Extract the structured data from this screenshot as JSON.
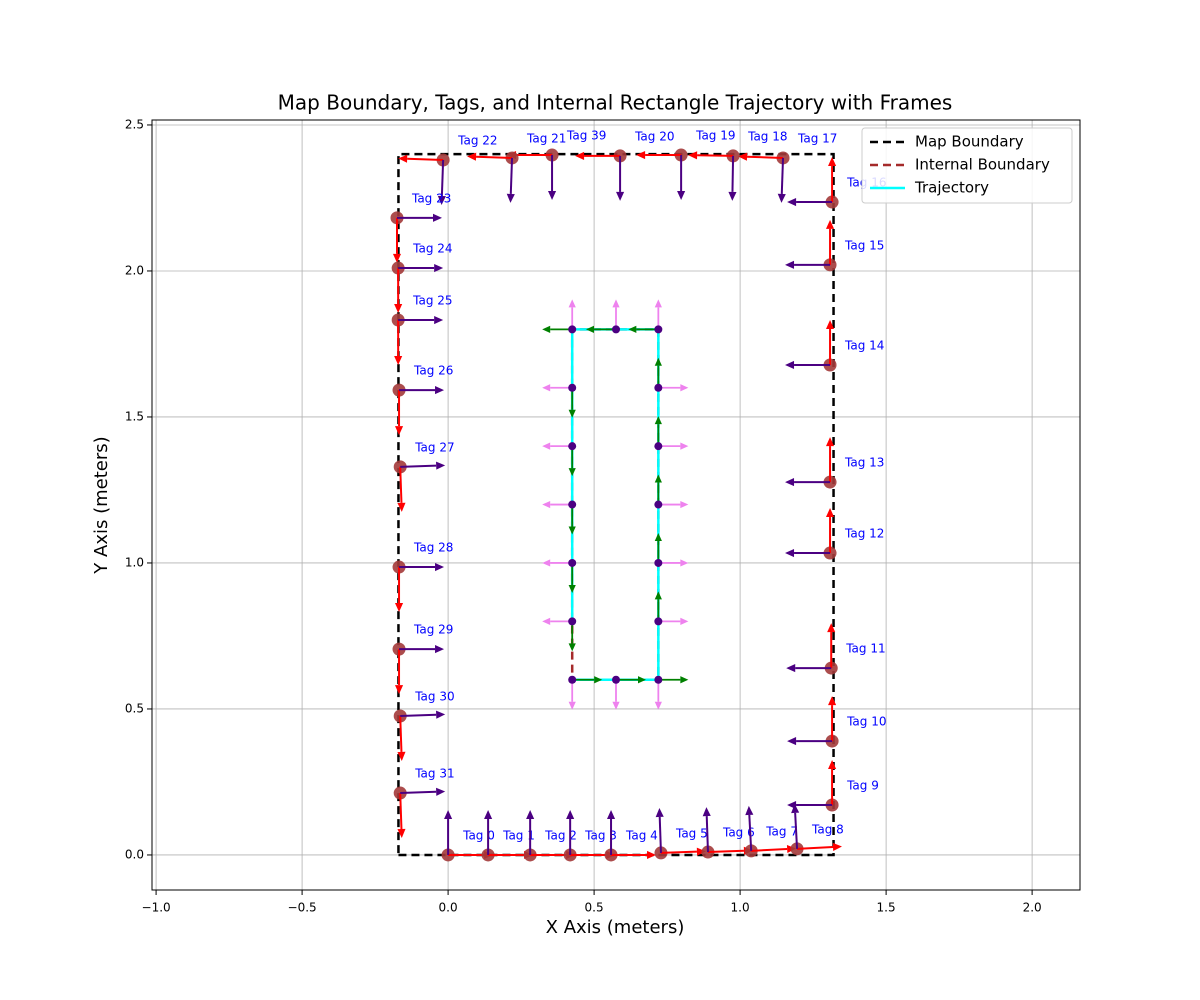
{
  "chart_data": {
    "type": "scatter",
    "title": "Map Boundary, Tags, and Internal Rectangle Trajectory with Frames",
    "x_label": "X Axis (meters)",
    "y_label": "Y Axis (meters)",
    "xlim": [
      -1.014,
      2.164
    ],
    "ylim": [
      -0.12,
      2.517
    ],
    "xticks": [
      {
        "value": -1.0,
        "label": "−1.0"
      },
      {
        "value": -0.5,
        "label": "−0.5"
      },
      {
        "value": 0.0,
        "label": "0.0"
      },
      {
        "value": 0.5,
        "label": "0.5"
      },
      {
        "value": 1.0,
        "label": "1.0"
      },
      {
        "value": 1.5,
        "label": "1.5"
      },
      {
        "value": 2.0,
        "label": "2.0"
      }
    ],
    "yticks": [
      {
        "value": 0.0,
        "label": "0.0"
      },
      {
        "value": 0.5,
        "label": "0.5"
      },
      {
        "value": 1.0,
        "label": "1.0"
      },
      {
        "value": 1.5,
        "label": "1.5"
      },
      {
        "value": 2.0,
        "label": "2.0"
      },
      {
        "value": 2.5,
        "label": "2.5"
      }
    ],
    "grid": true,
    "legend_position": "upper right",
    "series": [
      {
        "name": "Map Boundary",
        "color": "#000000",
        "dashed": true,
        "x": [
          -0.17,
          1.32,
          1.32,
          -0.17,
          -0.17
        ],
        "y": [
          0,
          0,
          2.4,
          2.4,
          0
        ]
      },
      {
        "name": "Internal Boundary",
        "color": "#a52a2a",
        "dashed": true,
        "x": [
          0.425,
          0.72,
          0.72,
          0.425,
          0.425
        ],
        "y": [
          0.6,
          0.6,
          1.8,
          1.8,
          0.6
        ]
      },
      {
        "name": "Trajectory",
        "color": "#00ffff",
        "dashed": false,
        "x": [
          0.425,
          0.72,
          0.72,
          0.425,
          0.425
        ],
        "y": [
          0.6,
          0.6,
          1.8,
          1.8,
          0.8
        ]
      }
    ],
    "tag_colors": {
      "point": "#a33a3a",
      "x_axis": "#ff0000",
      "y_axis": "#4b0082",
      "label": "#0000ff"
    },
    "tags": [
      {
        "label": "Tag 0",
        "x": 0.0,
        "y": 0.0,
        "heading": 0
      },
      {
        "label": "Tag 1",
        "x": 0.137,
        "y": 0.0,
        "heading": 0
      },
      {
        "label": "Tag 2",
        "x": 0.281,
        "y": 0.0,
        "heading": 0
      },
      {
        "label": "Tag 3",
        "x": 0.418,
        "y": 0.0,
        "heading": 0
      },
      {
        "label": "Tag 4",
        "x": 0.558,
        "y": 0.0,
        "heading": 0
      },
      {
        "label": "Tag 5",
        "x": 0.729,
        "y": 0.007,
        "heading": 2
      },
      {
        "label": "Tag 6",
        "x": 0.89,
        "y": 0.01,
        "heading": 2
      },
      {
        "label": "Tag 7",
        "x": 1.038,
        "y": 0.014,
        "heading": 3
      },
      {
        "label": "Tag 8",
        "x": 1.195,
        "y": 0.021,
        "heading": 3
      },
      {
        "label": "Tag 9",
        "x": 1.315,
        "y": 0.171,
        "heading": 90
      },
      {
        "label": "Tag 10",
        "x": 1.315,
        "y": 0.39,
        "heading": 90
      },
      {
        "label": "Tag 11",
        "x": 1.312,
        "y": 0.64,
        "heading": 90
      },
      {
        "label": "Tag 12",
        "x": 1.308,
        "y": 1.034,
        "heading": 90
      },
      {
        "label": "Tag 13",
        "x": 1.308,
        "y": 1.277,
        "heading": 90
      },
      {
        "label": "Tag 14",
        "x": 1.308,
        "y": 1.678,
        "heading": 90
      },
      {
        "label": "Tag 15",
        "x": 1.308,
        "y": 2.021,
        "heading": 90
      },
      {
        "label": "Tag 16",
        "x": 1.315,
        "y": 2.236,
        "heading": 90
      },
      {
        "label": "Tag 17",
        "x": 1.147,
        "y": 2.387,
        "heading": 178
      },
      {
        "label": "Tag 18",
        "x": 0.976,
        "y": 2.394,
        "heading": 179
      },
      {
        "label": "Tag 19",
        "x": 0.798,
        "y": 2.397,
        "heading": 180
      },
      {
        "label": "Tag 20",
        "x": 0.589,
        "y": 2.394,
        "heading": 180
      },
      {
        "label": "Tag 39",
        "x": 0.356,
        "y": 2.397,
        "heading": 180
      },
      {
        "label": "Tag 21",
        "x": 0.219,
        "y": 2.387,
        "heading": 178
      },
      {
        "label": "Tag 22",
        "x": -0.017,
        "y": 2.38,
        "heading": 178
      },
      {
        "label": "Tag 23",
        "x": -0.175,
        "y": 2.182,
        "heading": 270
      },
      {
        "label": "Tag 24",
        "x": -0.171,
        "y": 2.01,
        "heading": 270
      },
      {
        "label": "Tag 25",
        "x": -0.171,
        "y": 1.832,
        "heading": 270
      },
      {
        "label": "Tag 26",
        "x": -0.168,
        "y": 1.592,
        "heading": 270
      },
      {
        "label": "Tag 27",
        "x": -0.164,
        "y": 1.329,
        "heading": 272
      },
      {
        "label": "Tag 28",
        "x": -0.168,
        "y": 0.986,
        "heading": 270
      },
      {
        "label": "Tag 29",
        "x": -0.168,
        "y": 0.705,
        "heading": 270
      },
      {
        "label": "Tag 30",
        "x": -0.164,
        "y": 0.476,
        "heading": 272
      },
      {
        "label": "Tag 31",
        "x": -0.164,
        "y": 0.212,
        "heading": 272
      }
    ],
    "frame_colors": {
      "point": "#4b0082",
      "heading": "#008000",
      "normal": "#ee82ee"
    },
    "frames": [
      {
        "x": 0.425,
        "y": 0.6,
        "heading": 0
      },
      {
        "x": 0.575,
        "y": 0.6,
        "heading": 0
      },
      {
        "x": 0.72,
        "y": 0.6,
        "heading": 0
      },
      {
        "x": 0.72,
        "y": 0.8,
        "heading": 90
      },
      {
        "x": 0.72,
        "y": 1.0,
        "heading": 90
      },
      {
        "x": 0.72,
        "y": 1.2,
        "heading": 90
      },
      {
        "x": 0.72,
        "y": 1.4,
        "heading": 90
      },
      {
        "x": 0.72,
        "y": 1.6,
        "heading": 90
      },
      {
        "x": 0.72,
        "y": 1.8,
        "heading": 180
      },
      {
        "x": 0.575,
        "y": 1.8,
        "heading": 180
      },
      {
        "x": 0.425,
        "y": 1.8,
        "heading": 180
      },
      {
        "x": 0.425,
        "y": 1.6,
        "heading": 270
      },
      {
        "x": 0.425,
        "y": 1.4,
        "heading": 270
      },
      {
        "x": 0.425,
        "y": 1.2,
        "heading": 270
      },
      {
        "x": 0.425,
        "y": 1.0,
        "heading": 270
      },
      {
        "x": 0.425,
        "y": 0.8,
        "heading": 270
      }
    ]
  }
}
